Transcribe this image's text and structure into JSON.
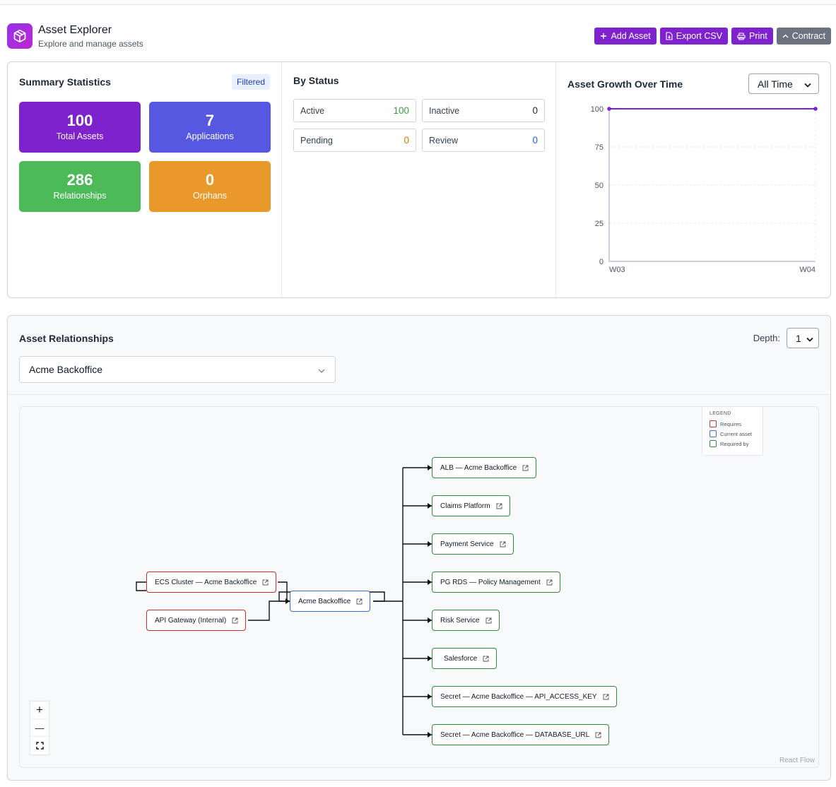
{
  "header": {
    "title": "Asset Explorer",
    "subtitle": "Explore and manage assets",
    "logo_icon": "cube-icon"
  },
  "toolbar": {
    "add_label": "Add Asset",
    "export_label": "Export CSV",
    "print_label": "Print",
    "contract_label": "Contract"
  },
  "summary": {
    "title": "Summary Statistics",
    "badge": "Filtered",
    "cards": [
      {
        "value": "100",
        "label": "Total Assets",
        "color": "#7e22ce"
      },
      {
        "value": "7",
        "label": "Applications",
        "color": "#5658e2"
      },
      {
        "value": "286",
        "label": "Relationships",
        "color": "#4dba5a"
      },
      {
        "value": "0",
        "label": "Orphans",
        "color": "#e9992a"
      }
    ]
  },
  "by_status": {
    "title": "By Status",
    "items": [
      {
        "label": "Active",
        "value": "100",
        "color": "#3d9a44"
      },
      {
        "label": "Inactive",
        "value": "0",
        "color": "#1f2937"
      },
      {
        "label": "Pending",
        "value": "0",
        "color": "#d97706"
      },
      {
        "label": "Review",
        "value": "0",
        "color": "#2563eb"
      }
    ]
  },
  "growth": {
    "title": "Asset Growth Over Time",
    "range_selected": "All Time"
  },
  "chart_data": {
    "type": "line",
    "title": "Asset Growth Over Time",
    "categories": [
      "W03",
      "W04"
    ],
    "series": [
      {
        "values": [
          100,
          100
        ],
        "color": "#7e22ce"
      }
    ],
    "yticks": [
      0,
      25,
      50,
      75,
      100
    ],
    "ylim": [
      0,
      100
    ],
    "grid": true
  },
  "relationships": {
    "title": "Asset Relationships",
    "depth_label": "Depth:",
    "depth_value": "1",
    "selected_asset": "Acme Backoffice",
    "legend": {
      "title": "LEGEND",
      "items": [
        {
          "label": "Requires",
          "color": "#c53030"
        },
        {
          "label": "Current asset",
          "color": "#3b6dc9"
        },
        {
          "label": "Required by",
          "color": "#2f8a3e"
        }
      ]
    },
    "nodes": {
      "requires": [
        "ECS Cluster — Acme Backoffice",
        "API Gateway (Internal)"
      ],
      "current": "Acme Backoffice",
      "required_by": [
        "ALB — Acme Backoffice",
        "Claims Platform",
        "Payment Service",
        "PG RDS — Policy Management",
        "Risk Service",
        "Salesforce",
        "Secret — Acme Backoffice — API_ACCESS_KEY",
        "Secret — Acme Backoffice — DATABASE_URL"
      ]
    },
    "controls": {
      "zoom_in": "+",
      "zoom_out": "—"
    },
    "attribution": "React Flow"
  }
}
